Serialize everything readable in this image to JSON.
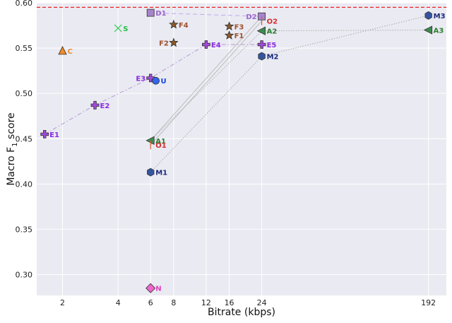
{
  "chart_data": {
    "type": "scatter",
    "title": "",
    "xlabel": "Bitrate (kbps)",
    "ylabel_main": "Macro F",
    "ylabel_sub": "1",
    "ylabel_tail": " score",
    "x_scale": "log",
    "xlim": [
      1.45,
      240
    ],
    "ylim": [
      0.277,
      0.6
    ],
    "x_ticks": [
      2,
      4,
      6,
      8,
      12,
      16,
      24,
      192
    ],
    "x_tick_labels": [
      "2",
      "4",
      "6",
      "8",
      "12",
      "16",
      "24",
      "192"
    ],
    "y_ticks": [
      0.3,
      0.35,
      0.4,
      0.45,
      0.5,
      0.55,
      0.6
    ],
    "y_tick_labels": [
      "0.30",
      "0.35",
      "0.40",
      "0.45",
      "0.50",
      "0.55",
      "0.60"
    ],
    "grid": true,
    "reference_line": {
      "y": 0.595,
      "color": "#ee2222",
      "style": "dashed"
    },
    "colors": {
      "plot_bg": "#eaeaf2",
      "grid": "#ffffff",
      "E": "#a04cd8",
      "D": "#a884cc",
      "A": "#3d8c4f",
      "M": "#3355a0",
      "F": "#8b5a2b",
      "O": "#d65c2c",
      "C": "#f08c28",
      "S": "#33cc55",
      "U": "#3366ee",
      "N": "#ee66cc"
    },
    "points": [
      {
        "name": "E1",
        "x": 1.6,
        "y": 0.455,
        "marker": "plus",
        "color": "#a04cd8",
        "label_color": "#8a2be2"
      },
      {
        "name": "E2",
        "x": 3,
        "y": 0.487,
        "marker": "plus",
        "color": "#a04cd8",
        "label_color": "#8a2be2"
      },
      {
        "name": "E3",
        "x": 6,
        "y": 0.517,
        "marker": "plus",
        "color": "#a04cd8",
        "label_color": "#8a2be2",
        "label_side": "left"
      },
      {
        "name": "E4",
        "x": 12,
        "y": 0.554,
        "marker": "plus",
        "color": "#a04cd8",
        "label_color": "#8a2be2"
      },
      {
        "name": "E5",
        "x": 24,
        "y": 0.554,
        "marker": "plus",
        "color": "#a04cd8",
        "label_color": "#8a2be2"
      },
      {
        "name": "D1",
        "x": 6,
        "y": 0.589,
        "marker": "square",
        "color": "#a884cc",
        "label_color": "#9966cc"
      },
      {
        "name": "D2",
        "x": 24,
        "y": 0.585,
        "marker": "square",
        "color": "#a884cc",
        "label_color": "#9966cc",
        "label_side": "left"
      },
      {
        "name": "A1",
        "x": 6,
        "y": 0.448,
        "marker": "triangle-left",
        "color": "#3d8c4f",
        "label_color": "#2e7d32"
      },
      {
        "name": "A2",
        "x": 24,
        "y": 0.569,
        "marker": "triangle-left",
        "color": "#3d8c4f",
        "label_color": "#2e7d32"
      },
      {
        "name": "A3",
        "x": 192,
        "y": 0.57,
        "marker": "triangle-left",
        "color": "#3d8c4f",
        "label_color": "#2e7d32"
      },
      {
        "name": "M1",
        "x": 6,
        "y": 0.413,
        "marker": "hexagon",
        "color": "#3355a0",
        "label_color": "#1a2a7a"
      },
      {
        "name": "M2",
        "x": 24,
        "y": 0.541,
        "marker": "hexagon",
        "color": "#3355a0",
        "label_color": "#1a2a7a"
      },
      {
        "name": "M3",
        "x": 192,
        "y": 0.586,
        "marker": "hexagon",
        "color": "#3355a0",
        "label_color": "#1a2a7a"
      },
      {
        "name": "F1",
        "x": 16,
        "y": 0.564,
        "marker": "star",
        "color": "#8b5a2b",
        "label_color": "#a0522d"
      },
      {
        "name": "F2",
        "x": 8,
        "y": 0.556,
        "marker": "star",
        "color": "#8b5a2b",
        "label_color": "#a0522d",
        "label_side": "left"
      },
      {
        "name": "F3",
        "x": 16,
        "y": 0.574,
        "marker": "star",
        "color": "#8b5a2b",
        "label_color": "#a0522d"
      },
      {
        "name": "F4",
        "x": 8,
        "y": 0.576,
        "marker": "star",
        "color": "#8b5a2b",
        "label_color": "#a0522d"
      },
      {
        "name": "O1",
        "x": 6,
        "y": 0.443,
        "marker": "tick",
        "color": "#d65c2c",
        "label_color": "#d62c2c"
      },
      {
        "name": "O2",
        "x": 24,
        "y": 0.58,
        "marker": "tick",
        "color": "#d65c2c",
        "label_color": "#d62c2c"
      },
      {
        "name": "C",
        "x": 2,
        "y": 0.547,
        "marker": "triangle-up",
        "color": "#f08c28",
        "label_color": "#f08c28"
      },
      {
        "name": "S",
        "x": 4,
        "y": 0.572,
        "marker": "x",
        "color": "#33cc55",
        "label_color": "#22bb44"
      },
      {
        "name": "U",
        "x": 6.4,
        "y": 0.514,
        "marker": "circle",
        "color": "#3366ee",
        "label_color": "#1144dd"
      },
      {
        "name": "N",
        "x": 6,
        "y": 0.285,
        "marker": "diamond",
        "color": "#ee66cc",
        "label_color": "#e040c0"
      }
    ],
    "series_lines": [
      {
        "name": "E",
        "points": [
          "E1",
          "E2",
          "E3",
          "E4",
          "E5"
        ],
        "color": "#b59ad0",
        "style": "dashdot"
      },
      {
        "name": "D",
        "points": [
          "D1",
          "D2"
        ],
        "color": "#c0a8f0",
        "style": "dashed"
      },
      {
        "name": "A",
        "points": [
          "A1",
          "A2",
          "A3"
        ],
        "color": "#aaaaaa",
        "style": "dotted"
      },
      {
        "name": "M",
        "points": [
          "M1",
          "M2",
          "M3"
        ],
        "color": "#aaaaaa",
        "style": "dotted"
      },
      {
        "name": "O",
        "points": [
          "O1",
          "O2"
        ],
        "color": "#bbbbbb",
        "style": "solid"
      },
      {
        "name": "A-bridge",
        "points": [
          "A1",
          "D2"
        ],
        "color": "#bbbbbb",
        "style": "solid"
      }
    ]
  }
}
